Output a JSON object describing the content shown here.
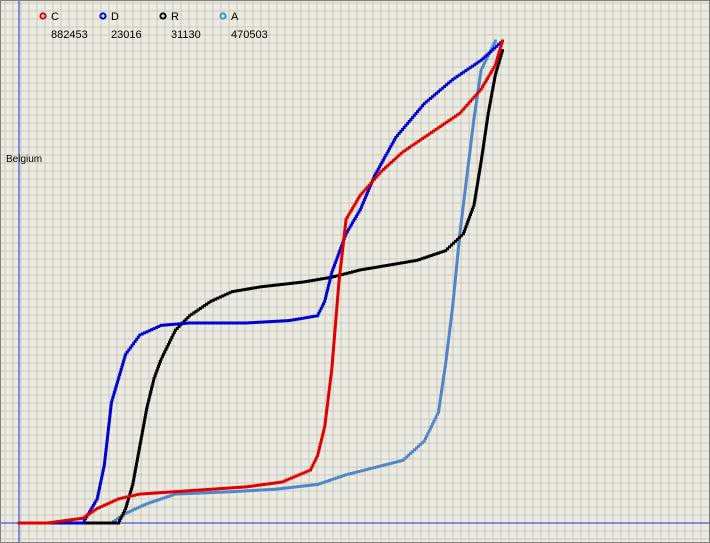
{
  "chart_data": {
    "type": "scatter",
    "country_label": "Belgium",
    "grid": true,
    "legend_placement": "top-left",
    "series": [
      {
        "name": "C",
        "count": "882453",
        "color": "#e00000",
        "points": [
          [
            0.0,
            0.0
          ],
          [
            0.04,
            0.0
          ],
          [
            0.09,
            0.01
          ],
          [
            0.11,
            0.03
          ],
          [
            0.14,
            0.05
          ],
          [
            0.17,
            0.06
          ],
          [
            0.22,
            0.065
          ],
          [
            0.27,
            0.07
          ],
          [
            0.32,
            0.075
          ],
          [
            0.37,
            0.085
          ],
          [
            0.41,
            0.11
          ],
          [
            0.42,
            0.14
          ],
          [
            0.43,
            0.2
          ],
          [
            0.44,
            0.32
          ],
          [
            0.45,
            0.5
          ],
          [
            0.46,
            0.63
          ],
          [
            0.48,
            0.68
          ],
          [
            0.51,
            0.73
          ],
          [
            0.54,
            0.77
          ],
          [
            0.58,
            0.81
          ],
          [
            0.62,
            0.85
          ],
          [
            0.65,
            0.9
          ],
          [
            0.67,
            0.95
          ],
          [
            0.68,
            1.0
          ]
        ]
      },
      {
        "name": "D",
        "count": "23016",
        "color": "#0000d0",
        "points": [
          [
            0.0,
            0.0
          ],
          [
            0.09,
            0.0
          ],
          [
            0.11,
            0.05
          ],
          [
            0.12,
            0.12
          ],
          [
            0.13,
            0.25
          ],
          [
            0.15,
            0.35
          ],
          [
            0.17,
            0.39
          ],
          [
            0.2,
            0.41
          ],
          [
            0.24,
            0.415
          ],
          [
            0.32,
            0.415
          ],
          [
            0.38,
            0.42
          ],
          [
            0.42,
            0.43
          ],
          [
            0.43,
            0.46
          ],
          [
            0.44,
            0.52
          ],
          [
            0.46,
            0.6
          ],
          [
            0.48,
            0.65
          ],
          [
            0.5,
            0.72
          ],
          [
            0.53,
            0.8
          ],
          [
            0.57,
            0.87
          ],
          [
            0.61,
            0.92
          ],
          [
            0.65,
            0.96
          ],
          [
            0.68,
            1.0
          ]
        ]
      },
      {
        "name": "R",
        "count": "31130",
        "color": "#000000",
        "points": [
          [
            0.0,
            0.0
          ],
          [
            0.14,
            0.0
          ],
          [
            0.15,
            0.03
          ],
          [
            0.16,
            0.08
          ],
          [
            0.17,
            0.16
          ],
          [
            0.18,
            0.24
          ],
          [
            0.19,
            0.3
          ],
          [
            0.2,
            0.34
          ],
          [
            0.21,
            0.37
          ],
          [
            0.22,
            0.4
          ],
          [
            0.24,
            0.43
          ],
          [
            0.27,
            0.46
          ],
          [
            0.3,
            0.48
          ],
          [
            0.34,
            0.49
          ],
          [
            0.4,
            0.5
          ],
          [
            0.44,
            0.51
          ],
          [
            0.48,
            0.525
          ],
          [
            0.52,
            0.535
          ],
          [
            0.56,
            0.545
          ],
          [
            0.6,
            0.565
          ],
          [
            0.625,
            0.6
          ],
          [
            0.64,
            0.66
          ],
          [
            0.65,
            0.75
          ],
          [
            0.66,
            0.85
          ],
          [
            0.67,
            0.93
          ],
          [
            0.68,
            0.98
          ]
        ]
      },
      {
        "name": "A",
        "count": "470503",
        "color": "#4f86c8",
        "points": [
          [
            0.0,
            0.0
          ],
          [
            0.13,
            0.0
          ],
          [
            0.15,
            0.02
          ],
          [
            0.18,
            0.04
          ],
          [
            0.22,
            0.06
          ],
          [
            0.3,
            0.065
          ],
          [
            0.36,
            0.07
          ],
          [
            0.42,
            0.08
          ],
          [
            0.46,
            0.1
          ],
          [
            0.5,
            0.115
          ],
          [
            0.54,
            0.13
          ],
          [
            0.57,
            0.17
          ],
          [
            0.59,
            0.23
          ],
          [
            0.6,
            0.33
          ],
          [
            0.61,
            0.45
          ],
          [
            0.62,
            0.6
          ],
          [
            0.63,
            0.72
          ],
          [
            0.64,
            0.84
          ],
          [
            0.65,
            0.94
          ],
          [
            0.67,
            1.0
          ]
        ]
      }
    ]
  }
}
